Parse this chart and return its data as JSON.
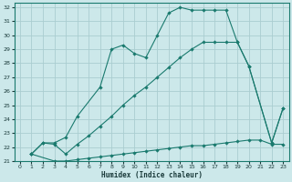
{
  "xlabel": "Humidex (Indice chaleur)",
  "bg_color": "#cce8ea",
  "grid_color": "#aacdd0",
  "line_color": "#1a7a6e",
  "xlim": [
    -0.5,
    23.5
  ],
  "ylim": [
    21,
    32.3
  ],
  "xticks": [
    0,
    1,
    2,
    3,
    4,
    5,
    6,
    7,
    8,
    9,
    10,
    11,
    12,
    13,
    14,
    15,
    16,
    17,
    18,
    19,
    20,
    21,
    22,
    23
  ],
  "yticks": [
    21,
    22,
    23,
    24,
    25,
    26,
    27,
    28,
    29,
    30,
    31,
    32
  ],
  "line1_x": [
    1,
    2,
    3,
    4,
    5,
    7,
    8,
    9,
    10,
    11,
    12,
    13,
    14,
    15,
    16,
    17,
    18,
    19,
    20,
    22,
    23
  ],
  "line1_y": [
    21.5,
    22.3,
    22.3,
    22.7,
    24.2,
    26.3,
    29.0,
    29.3,
    28.7,
    28.4,
    30.0,
    31.6,
    32.0,
    31.8,
    31.8,
    31.8,
    31.8,
    29.5,
    27.8,
    22.3,
    24.8
  ],
  "line2_x": [
    1,
    2,
    3,
    4,
    5,
    6,
    7,
    8,
    9,
    10,
    11,
    12,
    13,
    14,
    15,
    16,
    17,
    18,
    19,
    20,
    22,
    23
  ],
  "line2_y": [
    21.5,
    22.3,
    22.2,
    21.5,
    22.2,
    22.8,
    23.5,
    24.2,
    25.0,
    25.7,
    26.3,
    27.0,
    27.7,
    28.4,
    29.0,
    29.5,
    29.5,
    29.5,
    29.5,
    27.8,
    22.3,
    24.8
  ],
  "line3_x": [
    1,
    3,
    4,
    5,
    6,
    7,
    8,
    9,
    10,
    11,
    12,
    13,
    14,
    15,
    16,
    17,
    18,
    19,
    20,
    21,
    22,
    23
  ],
  "line3_y": [
    21.5,
    21.0,
    21.0,
    21.1,
    21.2,
    21.3,
    21.4,
    21.5,
    21.6,
    21.7,
    21.8,
    21.9,
    22.0,
    22.1,
    22.1,
    22.2,
    22.3,
    22.4,
    22.5,
    22.5,
    22.2,
    22.2
  ]
}
